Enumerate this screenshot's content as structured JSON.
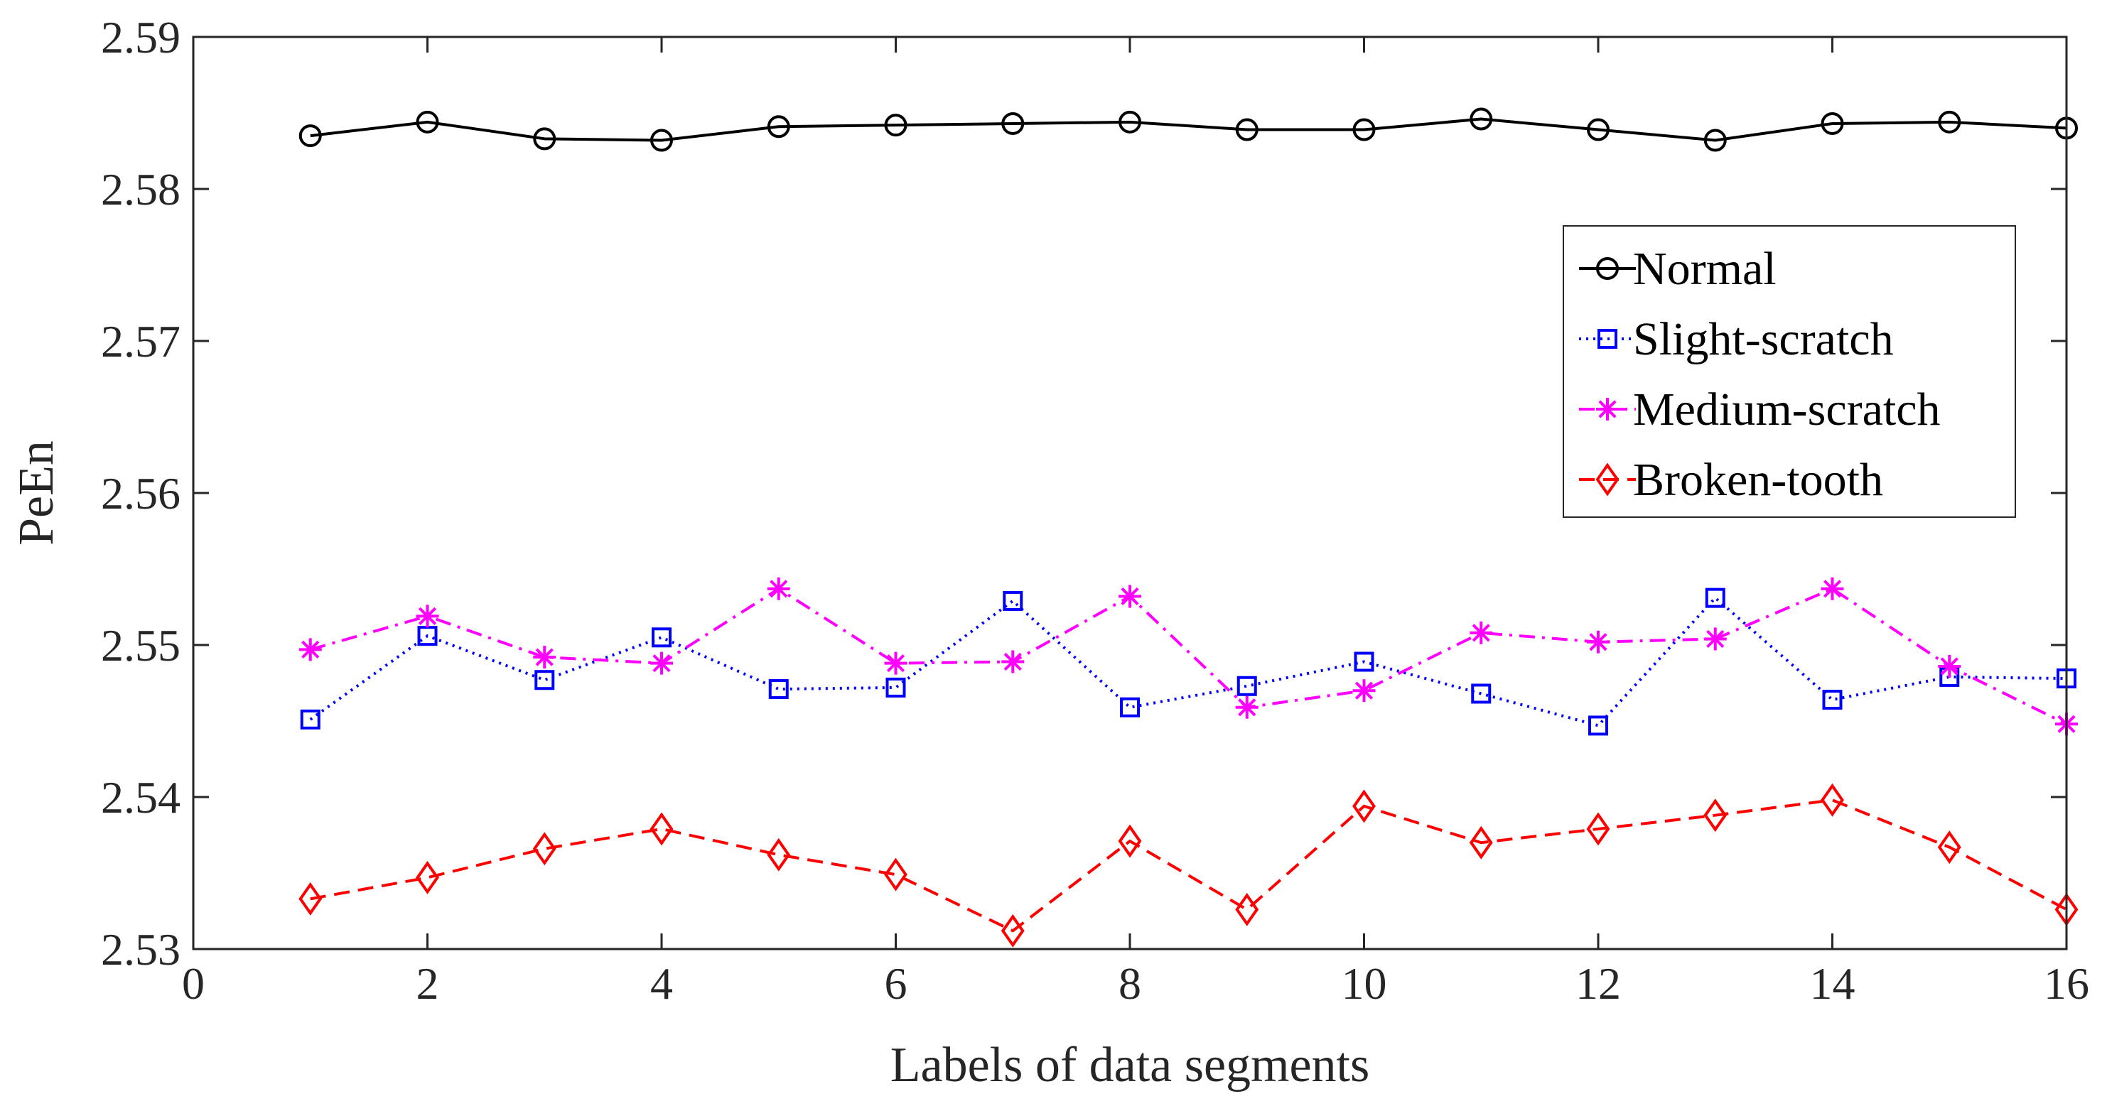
{
  "chart_data": {
    "type": "line",
    "title": "",
    "xlabel": "Labels of data segments",
    "ylabel": "PeEn",
    "xlim": [
      0,
      16
    ],
    "ylim": [
      2.53,
      2.59
    ],
    "xticks": [
      0,
      2,
      4,
      6,
      8,
      10,
      12,
      14,
      16
    ],
    "xtick_labels": [
      "0",
      "2",
      "4",
      "6",
      "8",
      "10",
      "12",
      "14",
      "16"
    ],
    "yticks": [
      2.53,
      2.54,
      2.55,
      2.56,
      2.57,
      2.58,
      2.59
    ],
    "ytick_labels": [
      "2.53",
      "2.54",
      "2.55",
      "2.56",
      "2.57",
      "2.58",
      "2.59"
    ],
    "grid": false,
    "legend_position": "right",
    "x": [
      1,
      2,
      3,
      4,
      5,
      6,
      7,
      8,
      9,
      10,
      11,
      12,
      13,
      14,
      15,
      16
    ],
    "series": [
      {
        "name": "Normal",
        "color": "#000000",
        "line_style": "solid",
        "marker": "circle",
        "values": [
          2.5835,
          2.5844,
          2.5833,
          2.5832,
          2.5841,
          2.5842,
          2.5843,
          2.5844,
          2.5839,
          2.5839,
          2.5846,
          2.5839,
          2.5832,
          2.5843,
          2.5844,
          2.584
        ]
      },
      {
        "name": "Slight-scratch",
        "color": "#0000ff",
        "line_style": "dotted",
        "marker": "square",
        "values": [
          2.5451,
          2.5506,
          2.5477,
          2.5505,
          2.5471,
          2.5472,
          2.5529,
          2.5459,
          2.5473,
          2.5489,
          2.5468,
          2.5447,
          2.5531,
          2.5464,
          2.5479,
          2.5478
        ]
      },
      {
        "name": "Medium-scratch",
        "color": "#ff00ff",
        "line_style": "dashdot",
        "marker": "asterisk",
        "values": [
          2.5497,
          2.5519,
          2.5492,
          2.5488,
          2.5537,
          2.5488,
          2.5489,
          2.5532,
          2.5459,
          2.547,
          2.5508,
          2.5502,
          2.5504,
          2.5537,
          2.5486,
          2.5448
        ]
      },
      {
        "name": "Broken-tooth",
        "color": "#ff0000",
        "line_style": "dashed",
        "marker": "diamond",
        "values": [
          2.5333,
          2.5347,
          2.5366,
          2.5379,
          2.5362,
          2.5349,
          2.5312,
          2.5371,
          2.5326,
          2.5394,
          2.537,
          2.5379,
          2.5388,
          2.5398,
          2.5367,
          2.5326
        ]
      }
    ]
  }
}
